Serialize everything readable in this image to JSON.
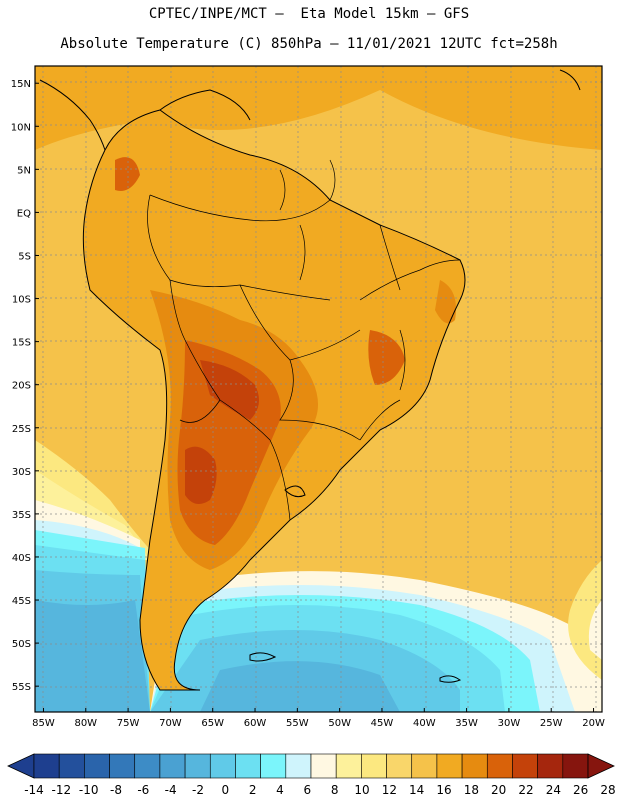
{
  "header": {
    "line1": "CPTEC/INPE/MCT –  Eta Model 15km – GFS",
    "line2": "Absolute Temperature (C) 850hPa – 11/01/2021 12UTC fct=258h"
  },
  "axes": {
    "lat_labels": [
      "15N",
      "10N",
      "5N",
      "EQ",
      "5S",
      "10S",
      "15S",
      "20S",
      "25S",
      "30S",
      "35S",
      "40S",
      "45S",
      "50S",
      "55S"
    ],
    "lat_values": [
      15,
      10,
      5,
      0,
      -5,
      -10,
      -15,
      -20,
      -25,
      -30,
      -35,
      -40,
      -45,
      -50,
      -55
    ],
    "lon_labels": [
      "85W",
      "80W",
      "75W",
      "70W",
      "65W",
      "60W",
      "55W",
      "50W",
      "45W",
      "40W",
      "35W",
      "30W",
      "25W",
      "20W"
    ],
    "lon_values": [
      -85,
      -80,
      -75,
      -70,
      -65,
      -60,
      -55,
      -50,
      -45,
      -40,
      -35,
      -30,
      -25,
      -20
    ],
    "lat_range": [
      -58,
      17
    ],
    "lon_range": [
      -86,
      -19
    ]
  },
  "colorbar": {
    "labels": [
      "-14",
      "-12",
      "-10",
      "-8",
      "-6",
      "-4",
      "-2",
      "0",
      "2",
      "4",
      "6",
      "8",
      "10",
      "12",
      "14",
      "16",
      "18",
      "20",
      "22",
      "24",
      "26",
      "28"
    ],
    "colors": [
      "#1e3f8f",
      "#23509c",
      "#2a64ab",
      "#3378b9",
      "#3d8cc6",
      "#4aa1d2",
      "#56b6dd",
      "#60cae8",
      "#6ce0f2",
      "#7bf5fb",
      "#cff4fc",
      "#fff8e2",
      "#fdf19b",
      "#fce880",
      "#f9d66a",
      "#f5c24a",
      "#f1aa22",
      "#e68b10",
      "#d9620a",
      "#c4420a",
      "#a5260d",
      "#86150e"
    ],
    "left_arrow_color": "#1e3f8f",
    "right_arrow_color": "#86150e"
  }
}
